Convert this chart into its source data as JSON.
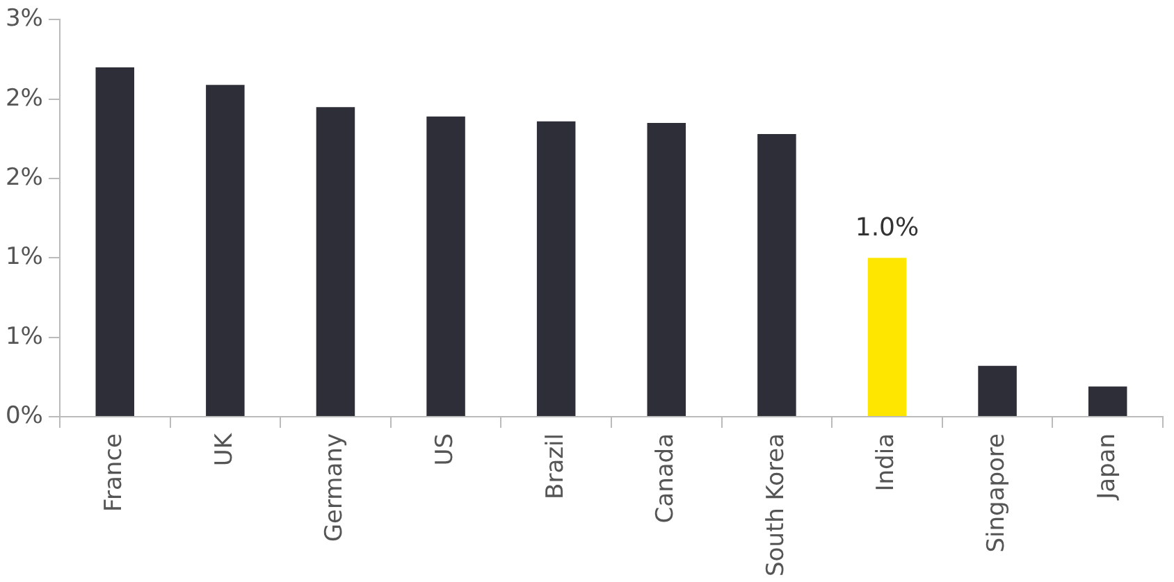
{
  "chart_data": {
    "type": "bar",
    "categories": [
      "France",
      "UK",
      "Germany",
      "US",
      "Brazil",
      "Canada",
      "South Korea",
      "India",
      "Singapore",
      "Japan"
    ],
    "values": [
      2.2,
      2.09,
      1.95,
      1.89,
      1.86,
      1.85,
      1.78,
      1.0,
      0.32,
      0.19
    ],
    "colors": [
      "#2e2e38",
      "#2e2e38",
      "#2e2e38",
      "#2e2e38",
      "#2e2e38",
      "#2e2e38",
      "#2e2e38",
      "#ffe600",
      "#2e2e38",
      "#2e2e38"
    ],
    "value_labels": [
      null,
      null,
      null,
      null,
      null,
      null,
      null,
      "1.0%",
      null,
      null
    ],
    "ylim": [
      0,
      2.5
    ],
    "yticks": [
      {
        "value": 0,
        "label": "0%"
      },
      {
        "value": 0.5,
        "label": "1%"
      },
      {
        "value": 1,
        "label": "1%"
      },
      {
        "value": 1.5,
        "label": "2%"
      },
      {
        "value": 2,
        "label": "2%"
      },
      {
        "value": 2.5,
        "label": "3%"
      }
    ],
    "grid": false,
    "legend": false
  }
}
